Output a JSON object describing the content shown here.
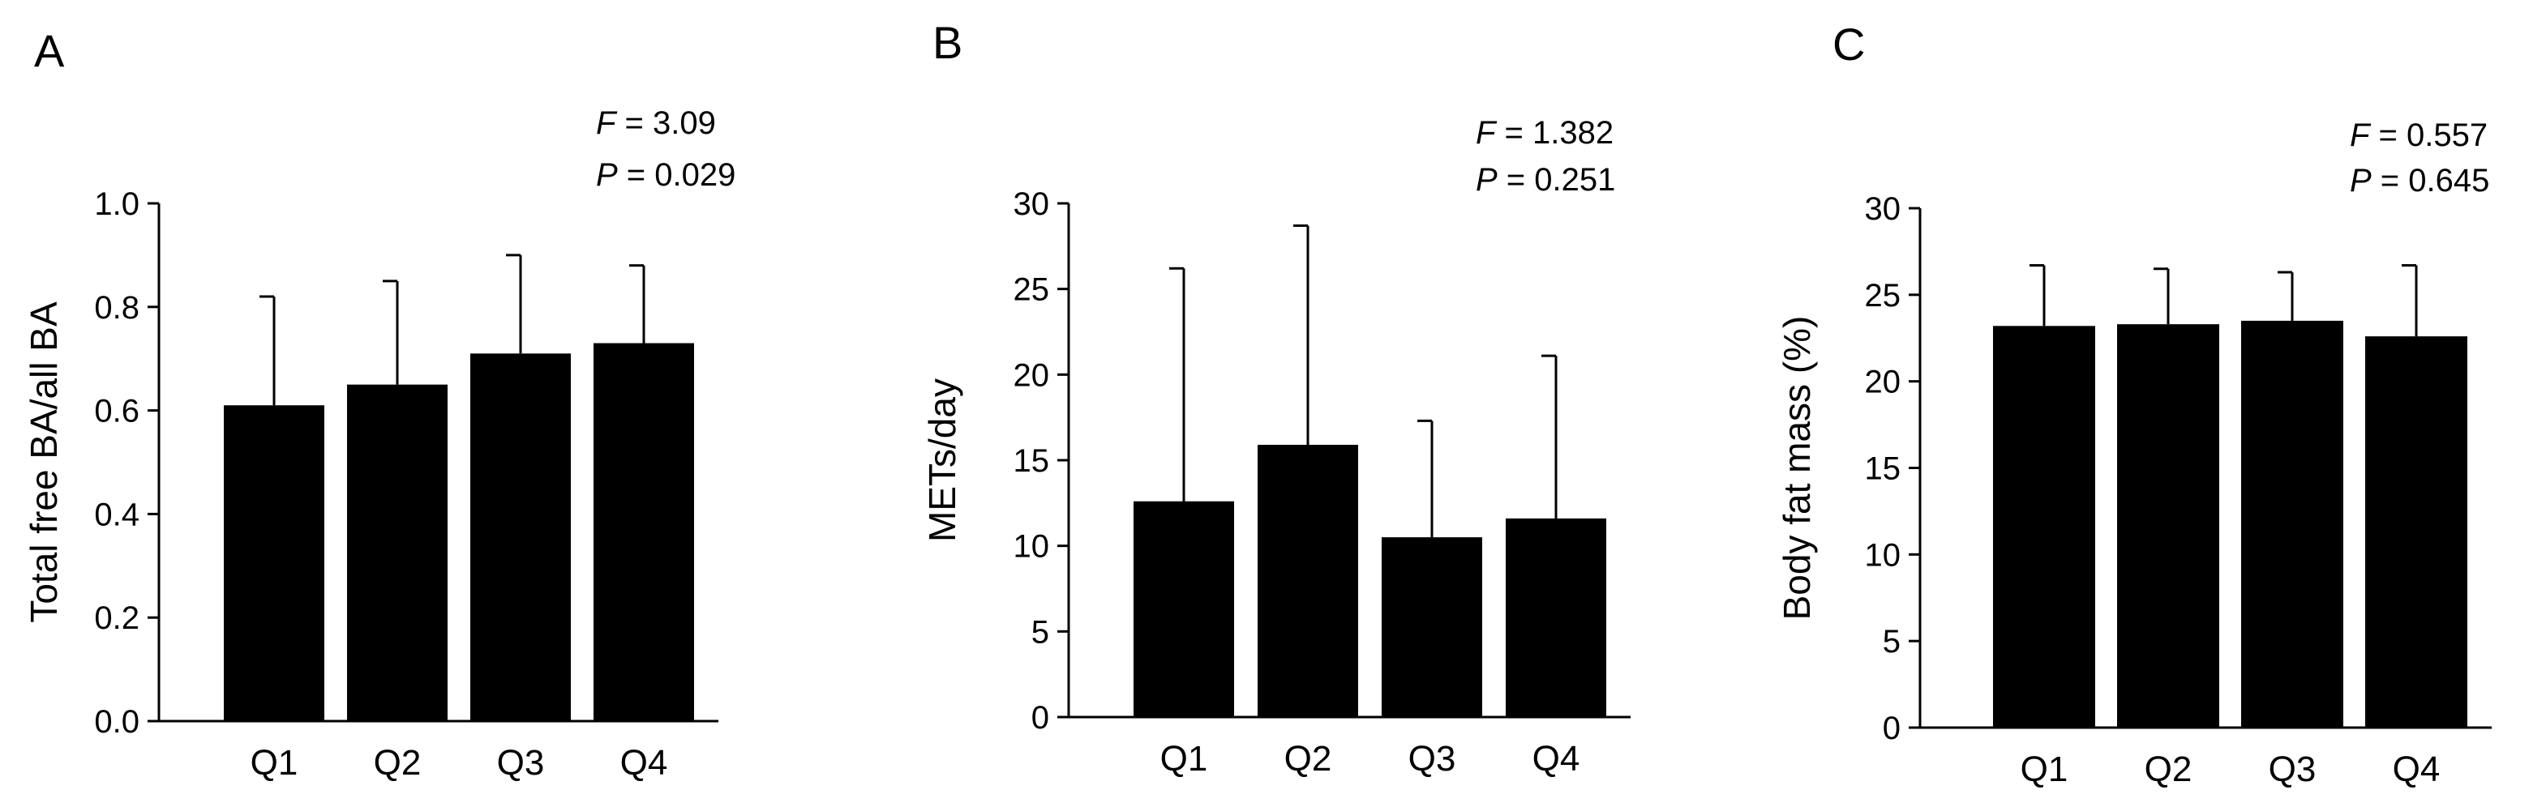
{
  "chart_data": [
    {
      "type": "bar",
      "panel_label": "A",
      "categories": [
        "Q1",
        "Q2",
        "Q3",
        "Q4"
      ],
      "values": [
        0.61,
        0.65,
        0.71,
        0.73
      ],
      "error_upper": [
        0.82,
        0.85,
        0.9,
        0.88
      ],
      "ylabel": "Total free BA/all BA",
      "xlabel": "",
      "ylim": [
        0,
        1.0
      ],
      "yticks": [
        "0.0",
        "0.2",
        "0.4",
        "0.6",
        "0.8",
        "1.0"
      ],
      "stats": {
        "f_letter": "F",
        "f_value": " = 3.09",
        "p_letter": "P",
        "p_value": " = 0.029"
      },
      "bar_color": "#000000",
      "grid": false,
      "legend": "none"
    },
    {
      "type": "bar",
      "panel_label": "B",
      "categories": [
        "Q1",
        "Q2",
        "Q3",
        "Q4"
      ],
      "values": [
        12.6,
        15.9,
        10.5,
        11.6
      ],
      "error_upper": [
        26.2,
        28.7,
        17.3,
        21.1
      ],
      "ylabel": "METs/day",
      "xlabel": "",
      "ylim": [
        0,
        30
      ],
      "yticks": [
        "0",
        "5",
        "10",
        "15",
        "20",
        "25",
        "30"
      ],
      "stats": {
        "f_letter": "F",
        "f_value": " = 1.382",
        "p_letter": "P",
        "p_value": " = 0.251"
      },
      "bar_color": "#000000",
      "grid": false,
      "legend": "none"
    },
    {
      "type": "bar",
      "panel_label": "C",
      "categories": [
        "Q1",
        "Q2",
        "Q3",
        "Q4"
      ],
      "values": [
        23.2,
        23.3,
        23.5,
        22.6
      ],
      "error_upper": [
        26.7,
        26.5,
        26.3,
        26.7
      ],
      "ylabel": "Body fat mass (%)",
      "xlabel": "",
      "ylim": [
        0,
        30
      ],
      "yticks": [
        "0",
        "5",
        "10",
        "15",
        "20",
        "25",
        "30"
      ],
      "stats": {
        "f_letter": "F",
        "f_value": " = 0.557",
        "p_letter": "P",
        "p_value": " = 0.645"
      },
      "bar_color": "#000000",
      "grid": false,
      "legend": "none"
    }
  ]
}
